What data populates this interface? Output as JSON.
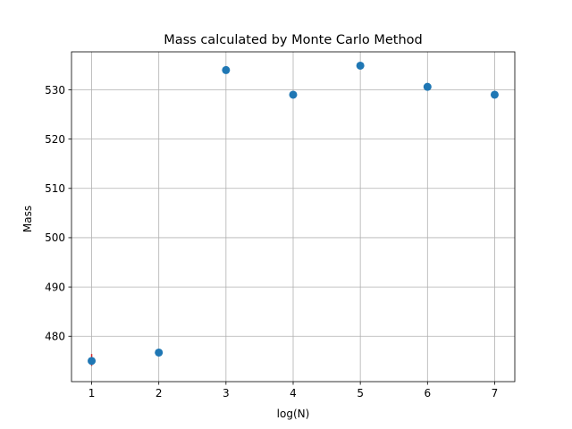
{
  "chart_data": {
    "type": "scatter",
    "title": "Mass calculated by Monte Carlo Method",
    "xlabel": "log(N)",
    "ylabel": "Mass",
    "x": [
      1,
      2,
      3,
      4,
      5,
      6,
      7
    ],
    "y": [
      475.0,
      476.7,
      534.0,
      529.0,
      534.9,
      530.6,
      529.0
    ],
    "xlim": [
      0.7,
      7.3
    ],
    "ylim": [
      470.8,
      537.7
    ],
    "xticks": [
      1,
      2,
      3,
      4,
      5,
      6,
      7
    ],
    "yticks": [
      480,
      490,
      500,
      510,
      520,
      530
    ],
    "error_bar": {
      "x": 1,
      "low": 474.0,
      "high": 476.4,
      "color": "#d62728"
    },
    "grid": true,
    "marker_color": "#1f77b4"
  }
}
